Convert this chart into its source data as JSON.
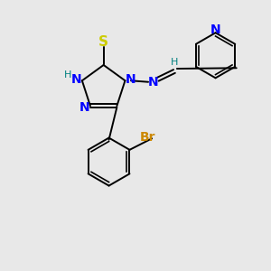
{
  "bg_color": "#e8e8e8",
  "atom_color_N": "#0000ff",
  "atom_color_S": "#cccc00",
  "atom_color_Br": "#cc8800",
  "atom_color_H": "#008080",
  "atom_color_C": "#000000",
  "bond_color": "#000000",
  "figsize": [
    3.0,
    3.0
  ],
  "dpi": 100,
  "xlim": [
    0,
    10
  ],
  "ylim": [
    0,
    10
  ]
}
